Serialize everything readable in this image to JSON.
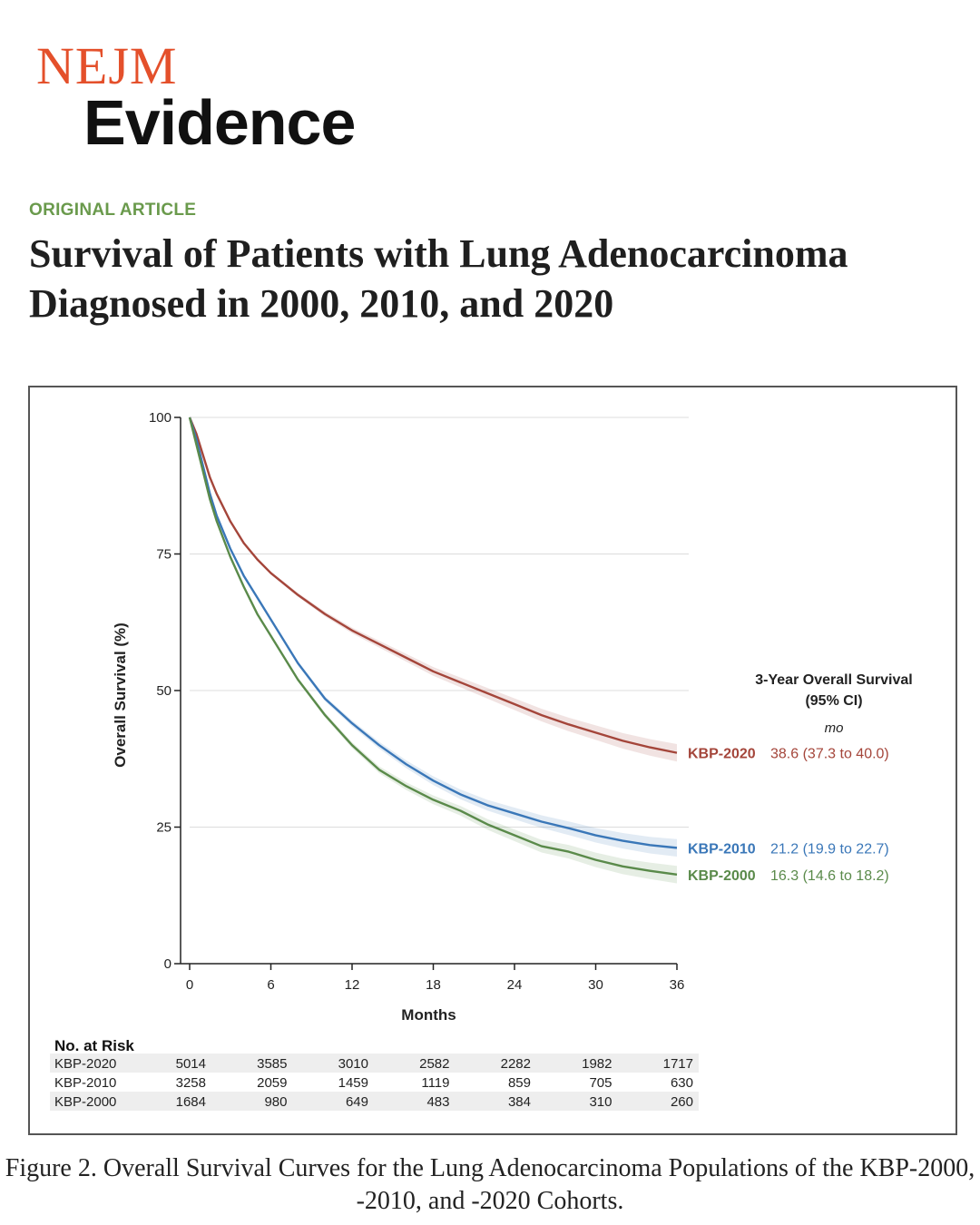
{
  "journal": {
    "name_top": "NEJM",
    "name_bottom": "Evidence"
  },
  "article_type": "ORIGINAL ARTICLE",
  "article_title": "Survival of Patients with Lung Adenocarcinoma Diagnosed in 2000, 2010, and 2020",
  "figure_caption": "Figure 2.  Overall Survival Curves for the Lung Adenocarcinoma Populations of the KBP-2000, -2010, and -2020 Cohorts.",
  "colors": {
    "kbp2020": "#a4453a",
    "kbp2010": "#3a77b8",
    "kbp2000": "#5a8a4a",
    "accent_logo": "#e4502b",
    "article_type": "#6a9a4c"
  },
  "chart_data": {
    "type": "line",
    "xlabel": "Months",
    "ylabel": "Overall Survival (%)",
    "xlim": [
      0,
      36
    ],
    "ylim": [
      0,
      100
    ],
    "xticks": [
      0,
      6,
      12,
      18,
      24,
      30,
      36
    ],
    "yticks": [
      0,
      25,
      50,
      75,
      100
    ],
    "grid": "horizontal",
    "legend_header": [
      "3-Year Overall Survival",
      "(95% CI)"
    ],
    "legend_unit": "mo",
    "series": [
      {
        "name": "KBP-2020",
        "color_key": "kbp2020",
        "summary": "38.6 (37.3 to 40.0)",
        "x": [
          0,
          0.5,
          1,
          1.5,
          2,
          3,
          4,
          5,
          6,
          8,
          10,
          12,
          14,
          16,
          18,
          20,
          22,
          24,
          26,
          28,
          30,
          32,
          34,
          36
        ],
        "y": [
          100,
          97,
          93,
          89,
          86,
          81,
          77,
          74,
          71.5,
          67.5,
          64,
          61,
          58.5,
          56,
          53.5,
          51.5,
          49.5,
          47.5,
          45.5,
          43.8,
          42.3,
          40.8,
          39.6,
          38.6
        ]
      },
      {
        "name": "KBP-2010",
        "color_key": "kbp2010",
        "summary": "21.2 (19.9 to 22.7)",
        "x": [
          0,
          0.5,
          1,
          1.5,
          2,
          3,
          4,
          5,
          6,
          8,
          10,
          12,
          14,
          16,
          18,
          20,
          22,
          24,
          26,
          28,
          30,
          32,
          34,
          36
        ],
        "y": [
          100,
          96,
          91,
          86,
          82,
          76,
          71,
          67,
          63,
          55,
          48.5,
          44,
          40,
          36.5,
          33.5,
          31,
          29,
          27.5,
          26,
          24.8,
          23.5,
          22.5,
          21.7,
          21.2
        ]
      },
      {
        "name": "KBP-2000",
        "color_key": "kbp2000",
        "summary": "16.3 (14.6 to 18.2)",
        "x": [
          0,
          0.5,
          1,
          1.5,
          2,
          3,
          4,
          5,
          6,
          8,
          10,
          12,
          14,
          16,
          18,
          20,
          22,
          24,
          26,
          28,
          30,
          32,
          34,
          36
        ],
        "y": [
          100,
          95,
          90,
          85,
          81,
          74.5,
          69,
          64,
          60,
          52,
          45.5,
          40,
          35.5,
          32.5,
          30,
          28,
          25.5,
          23.5,
          21.5,
          20.5,
          19,
          17.8,
          17,
          16.3
        ]
      }
    ],
    "risk_table": {
      "header": "No. at Risk",
      "months": [
        0,
        6,
        12,
        18,
        24,
        30,
        36
      ],
      "rows": [
        {
          "label": "KBP-2020",
          "values": [
            "5014",
            "3585",
            "3010",
            "2582",
            "2282",
            "1982",
            "1717"
          ]
        },
        {
          "label": "KBP-2010",
          "values": [
            "3258",
            "2059",
            "1459",
            "1119",
            "859",
            "705",
            "630"
          ]
        },
        {
          "label": "KBP-2000",
          "values": [
            "1684",
            "980",
            "649",
            "483",
            "384",
            "310",
            "260"
          ]
        }
      ]
    }
  }
}
